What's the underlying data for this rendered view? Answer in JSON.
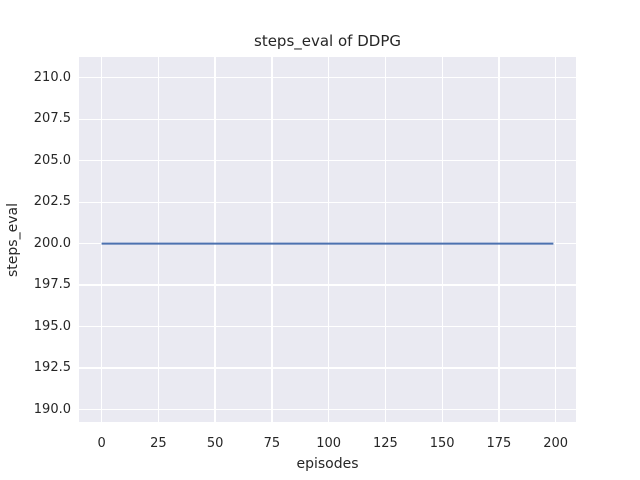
{
  "chart_data": {
    "type": "line",
    "title": "steps_eval of DDPG",
    "xlabel": "episodes",
    "ylabel": "steps_eval",
    "xlim": [
      -9.95,
      208.95
    ],
    "ylim": [
      189.25,
      211.25
    ],
    "xticks": [
      0,
      25,
      50,
      75,
      100,
      125,
      150,
      175,
      200
    ],
    "xtick_labels": [
      "0",
      "25",
      "50",
      "75",
      "100",
      "125",
      "150",
      "175",
      "200"
    ],
    "yticks": [
      190.0,
      192.5,
      195.0,
      197.5,
      200.0,
      202.5,
      205.0,
      207.5,
      210.0
    ],
    "ytick_labels": [
      "190.0",
      "192.5",
      "195.0",
      "197.5",
      "200.0",
      "202.5",
      "205.0",
      "207.5",
      "210.0"
    ],
    "grid": true,
    "legend": "none",
    "figure_bg": "#FFFFFF",
    "plot_bg": "#EAEAF2",
    "grid_color": "#FFFFFF",
    "text_color": "#262626",
    "line_width": 2,
    "series": [
      {
        "name": "steps_eval of DDPG",
        "color": "#4C72B0",
        "x": [
          0,
          199
        ],
        "y": [
          200.0,
          200.0
        ]
      }
    ]
  }
}
